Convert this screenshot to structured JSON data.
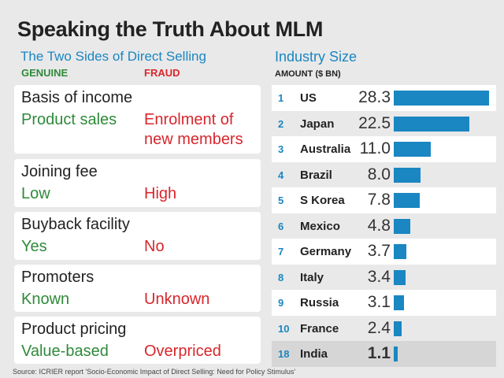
{
  "title": "Speaking the Truth About MLM",
  "comparison": {
    "subtitle": "The Two Sides of Direct Selling",
    "genuine_label": "GENUINE",
    "fraud_label": "FRAUD",
    "items": [
      {
        "heading": "Basis of income",
        "genuine": "Product sales",
        "fraud": "Enrolment of new members"
      },
      {
        "heading": "Joining fee",
        "genuine": "Low",
        "fraud": "High"
      },
      {
        "heading": "Buyback facility",
        "genuine": "Yes",
        "fraud": "No"
      },
      {
        "heading": "Promoters",
        "genuine": "Known",
        "fraud": "Unknown"
      },
      {
        "heading": "Product pricing",
        "genuine": "Value-based",
        "fraud": "Overpriced"
      }
    ]
  },
  "chart_data": {
    "type": "bar",
    "title": "Industry Size",
    "ylabel": "AMOUNT ($ BN)",
    "orientation": "horizontal",
    "bar_color": "#1a86c2",
    "ranks": [
      "1",
      "2",
      "3",
      "4",
      "5",
      "6",
      "7",
      "8",
      "9",
      "10",
      "18"
    ],
    "categories": [
      "US",
      "Japan",
      "Australia",
      "Brazil",
      "S Korea",
      "Mexico",
      "Germany",
      "Italy",
      "Russia",
      "France",
      "India"
    ],
    "values": [
      28.3,
      22.5,
      11.0,
      8.0,
      7.8,
      4.8,
      3.7,
      3.4,
      3.1,
      2.4,
      1.1
    ],
    "value_labels": [
      "28.3",
      "22.5",
      "11.0",
      "8.0",
      "7.8",
      "4.8",
      "3.7",
      "3.4",
      "3.1",
      "2.4",
      "1.1"
    ],
    "highlight": "India"
  },
  "source": "Source: ICRIER report 'Socio-Economic Impact of Direct Selling: Need for Policy Stimulus'"
}
